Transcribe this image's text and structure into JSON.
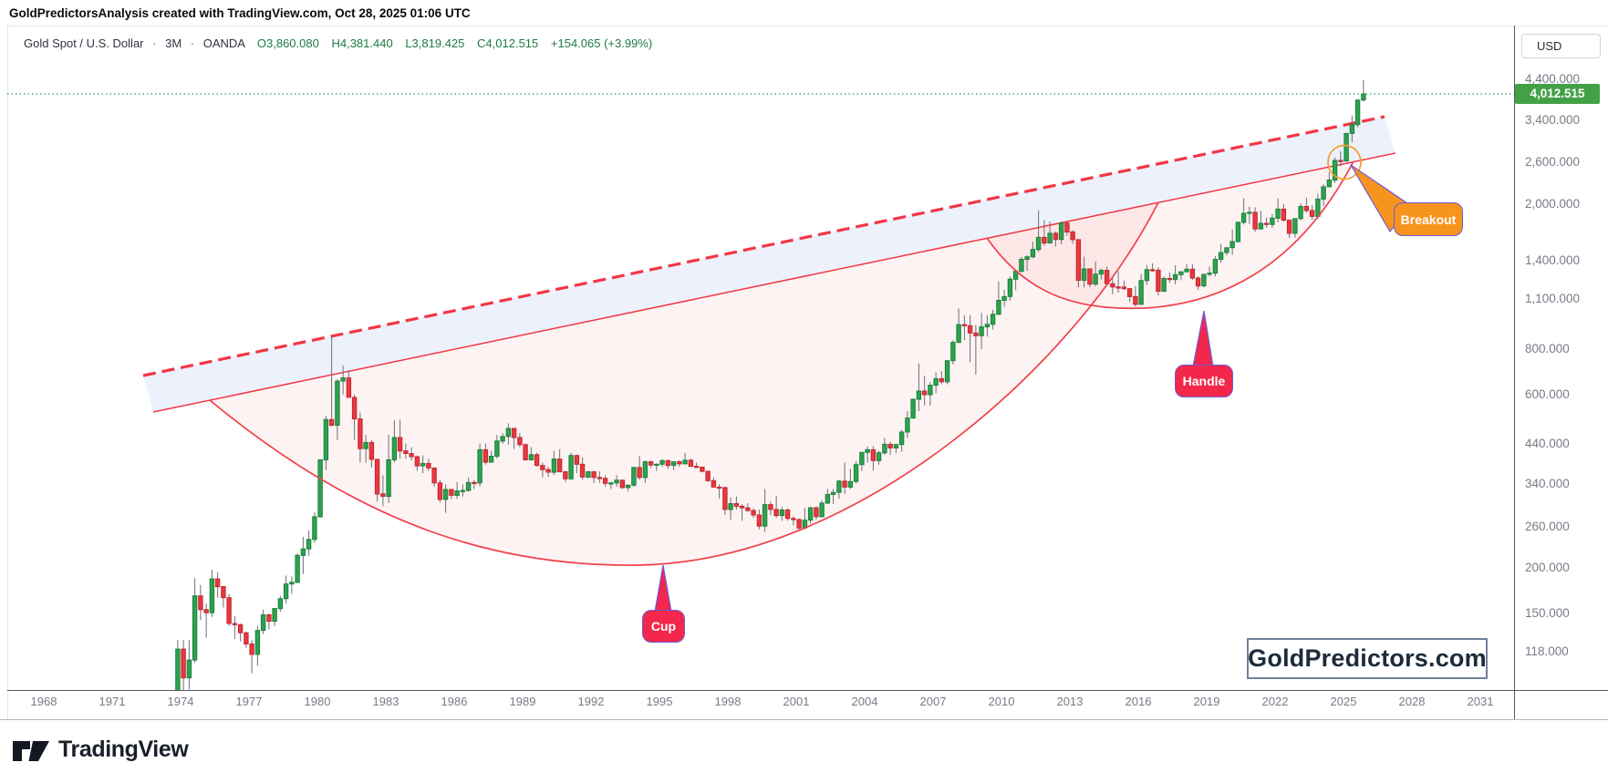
{
  "note": "GoldPredictorsAnalysis created with TradingView.com, Oct 28, 2025 01:06 UTC",
  "header": {
    "symbol": "Gold Spot / U.S. Dollar",
    "sep": "·",
    "interval": "3M",
    "exchange": "OANDA",
    "o_text": "O3,860.080",
    "h_text": "H4,381.440",
    "l_text": "L3,819.425",
    "c_text": "C4,012.515",
    "change_text": "+154.065 (+3.99%)"
  },
  "price_axis": {
    "currency": "USD",
    "last_price_label": "4,012.515",
    "last_price": 4012.515,
    "ticks": [
      {
        "label": "4,400.000",
        "value": 4400
      },
      {
        "label": "3,400.000",
        "value": 3400
      },
      {
        "label": "2,600.000",
        "value": 2600
      },
      {
        "label": "2,000.000",
        "value": 2000
      },
      {
        "label": "1,400.000",
        "value": 1400
      },
      {
        "label": "1,100.000",
        "value": 1100
      },
      {
        "label": "800.000",
        "value": 800
      },
      {
        "label": "600.000",
        "value": 600
      },
      {
        "label": "440.000",
        "value": 440
      },
      {
        "label": "340.000",
        "value": 340
      },
      {
        "label": "260.000",
        "value": 260
      },
      {
        "label": "200.000",
        "value": 200
      },
      {
        "label": "150.000",
        "value": 150
      },
      {
        "label": "118.000",
        "value": 118
      }
    ]
  },
  "time_axis": {
    "years": [
      1968,
      1971,
      1974,
      1977,
      1980,
      1983,
      1986,
      1989,
      1992,
      1995,
      1998,
      2001,
      2004,
      2007,
      2010,
      2013,
      2016,
      2019,
      2022,
      2025,
      2028,
      2031
    ]
  },
  "annotations": {
    "cup_label": "Cup",
    "handle_label": "Handle",
    "breakout_label": "Breakout"
  },
  "watermark": "GoldPredictors.com",
  "footer": {
    "brand": "TradingView"
  },
  "colors": {
    "candle_up": "#2fa14f",
    "candle_down": "#e9383f",
    "trendline_red": "#f23645",
    "channel_band": "#e9eefb",
    "pattern_fill": "#fdf2f3",
    "current_price_green": "#43a047",
    "badge_red": "#f2274b",
    "badge_orange": "#f7941e",
    "badge_border_violet": "#6f5adc",
    "ohlc_text_green": "#1e7b45"
  },
  "chart_data": {
    "type": "candlestick",
    "title": "Gold Spot / U.S. Dollar",
    "timeframe": "3M",
    "exchange": "OANDA",
    "y_scale": "log",
    "ylim": [
      94,
      6180
    ],
    "xlim_years": [
      1966.4,
      2032.5
    ],
    "x_tick_years": [
      1968,
      1971,
      1974,
      1977,
      1980,
      1983,
      1986,
      1989,
      1992,
      1995,
      1998,
      2001,
      2004,
      2007,
      2010,
      2013,
      2016,
      2019,
      2022,
      2025,
      2028,
      2031
    ],
    "y_ticks": [
      4400,
      3400,
      2600,
      2000,
      1400,
      1100,
      800,
      600,
      440,
      340,
      260,
      200,
      150,
      118
    ],
    "last_close": 4012.515,
    "candles_start": "1973-Q4",
    "candles_freq": "quarterly",
    "candles_ohlc": [
      [
        84,
        127,
        84,
        120
      ],
      [
        120,
        127,
        90,
        100
      ],
      [
        100,
        127,
        93,
        112
      ],
      [
        112,
        188,
        110,
        168
      ],
      [
        168,
        180,
        144,
        154
      ],
      [
        154,
        160,
        129,
        151
      ],
      [
        151,
        198,
        147,
        187
      ],
      [
        187,
        195,
        166,
        178
      ],
      [
        178,
        179,
        156,
        166
      ],
      [
        166,
        170,
        139,
        141
      ],
      [
        141,
        148,
        128,
        140
      ],
      [
        140,
        141,
        126,
        133
      ],
      [
        133,
        134,
        121,
        124
      ],
      [
        124,
        127,
        103,
        116
      ],
      [
        116,
        139,
        108,
        135
      ],
      [
        135,
        154,
        132,
        149
      ],
      [
        149,
        150,
        136,
        143
      ],
      [
        143,
        155,
        139,
        155
      ],
      [
        155,
        168,
        152,
        165
      ],
      [
        165,
        191,
        160,
        181
      ],
      [
        181,
        190,
        170,
        183
      ],
      [
        183,
        220,
        182,
        217
      ],
      [
        217,
        244,
        193,
        226
      ],
      [
        226,
        254,
        216,
        240
      ],
      [
        240,
        285,
        235,
        277
      ],
      [
        277,
        397,
        275,
        397
      ],
      [
        397,
        524,
        372,
        512
      ],
      [
        512,
        873,
        490,
        494
      ],
      [
        494,
        660,
        450,
        653
      ],
      [
        653,
        720,
        600,
        666
      ],
      [
        666,
        700,
        589,
        589
      ],
      [
        589,
        600,
        450,
        514
      ],
      [
        514,
        535,
        390,
        426
      ],
      [
        426,
        465,
        390,
        443
      ],
      [
        443,
        450,
        378,
        398
      ],
      [
        398,
        400,
        305,
        320
      ],
      [
        320,
        360,
        296,
        315
      ],
      [
        315,
        465,
        302,
        397
      ],
      [
        397,
        510,
        390,
        457
      ],
      [
        457,
        512,
        400,
        420
      ],
      [
        420,
        440,
        400,
        413
      ],
      [
        413,
        430,
        395,
        405
      ],
      [
        405,
        408,
        370,
        382
      ],
      [
        382,
        408,
        365,
        388
      ],
      [
        388,
        400,
        370,
        377
      ],
      [
        377,
        378,
        335,
        343
      ],
      [
        343,
        350,
        303,
        309
      ],
      [
        309,
        340,
        284,
        329
      ],
      [
        329,
        330,
        310,
        317
      ],
      [
        317,
        345,
        310,
        326
      ],
      [
        326,
        340,
        315,
        327
      ],
      [
        327,
        355,
        325,
        344
      ],
      [
        344,
        350,
        330,
        343
      ],
      [
        343,
        440,
        335,
        423
      ],
      [
        423,
        440,
        385,
        391
      ],
      [
        391,
        420,
        390,
        406
      ],
      [
        406,
        465,
        400,
        447
      ],
      [
        447,
        470,
        440,
        460
      ],
      [
        460,
        500,
        437,
        484
      ],
      [
        484,
        485,
        425,
        457
      ],
      [
        457,
        470,
        430,
        437
      ],
      [
        437,
        440,
        395,
        397
      ],
      [
        397,
        430,
        395,
        410
      ],
      [
        410,
        415,
        380,
        383
      ],
      [
        383,
        390,
        355,
        373
      ],
      [
        373,
        380,
        356,
        367
      ],
      [
        367,
        420,
        360,
        399
      ],
      [
        399,
        424,
        368,
        368
      ],
      [
        368,
        370,
        345,
        352
      ],
      [
        352,
        415,
        350,
        408
      ],
      [
        408,
        410,
        365,
        386
      ],
      [
        386,
        403,
        350,
        356
      ],
      [
        356,
        370,
        353,
        368
      ],
      [
        368,
        370,
        343,
        355
      ],
      [
        355,
        369,
        343,
        353
      ],
      [
        353,
        360,
        335,
        342
      ],
      [
        342,
        345,
        330,
        343
      ],
      [
        343,
        360,
        335,
        349
      ],
      [
        349,
        350,
        330,
        333
      ],
      [
        333,
        340,
        325,
        338
      ],
      [
        338,
        380,
        335,
        378
      ],
      [
        378,
        407,
        350,
        355
      ],
      [
        355,
        395,
        343,
        392
      ],
      [
        392,
        395,
        377,
        384
      ],
      [
        384,
        388,
        370,
        386
      ],
      [
        386,
        398,
        380,
        395
      ],
      [
        395,
        397,
        375,
        383
      ],
      [
        383,
        392,
        372,
        392
      ],
      [
        392,
        396,
        380,
        387
      ],
      [
        387,
        415,
        386,
        396
      ],
      [
        396,
        400,
        380,
        381
      ],
      [
        381,
        390,
        378,
        379
      ],
      [
        379,
        380,
        367,
        369
      ],
      [
        369,
        370,
        345,
        348
      ],
      [
        348,
        355,
        334,
        334
      ],
      [
        334,
        340,
        311,
        333
      ],
      [
        333,
        335,
        280,
        290
      ],
      [
        290,
        313,
        272,
        301
      ],
      [
        301,
        315,
        290,
        296
      ],
      [
        296,
        300,
        270,
        293
      ],
      [
        293,
        302,
        286,
        288
      ],
      [
        288,
        292,
        275,
        280
      ],
      [
        280,
        290,
        256,
        261
      ],
      [
        261,
        330,
        252,
        299
      ],
      [
        299,
        305,
        280,
        290
      ],
      [
        290,
        316,
        275,
        279
      ],
      [
        279,
        295,
        270,
        289
      ],
      [
        289,
        292,
        270,
        274
      ],
      [
        274,
        278,
        262,
        272
      ],
      [
        272,
        274,
        255,
        258
      ],
      [
        258,
        293,
        256,
        271
      ],
      [
        271,
        295,
        265,
        293
      ],
      [
        293,
        296,
        272,
        277
      ],
      [
        277,
        307,
        276,
        302
      ],
      [
        302,
        330,
        300,
        319
      ],
      [
        319,
        330,
        300,
        323
      ],
      [
        323,
        350,
        310,
        347
      ],
      [
        347,
        390,
        320,
        334
      ],
      [
        334,
        375,
        330,
        346
      ],
      [
        346,
        394,
        342,
        385
      ],
      [
        385,
        417,
        370,
        416
      ],
      [
        416,
        432,
        390,
        423
      ],
      [
        423,
        433,
        371,
        395
      ],
      [
        395,
        420,
        385,
        415
      ],
      [
        415,
        456,
        410,
        438
      ],
      [
        438,
        445,
        410,
        428
      ],
      [
        428,
        440,
        414,
        437
      ],
      [
        437,
        480,
        418,
        473
      ],
      [
        473,
        540,
        456,
        517
      ],
      [
        517,
        585,
        515,
        582
      ],
      [
        582,
        730,
        540,
        613
      ],
      [
        613,
        675,
        560,
        599
      ],
      [
        599,
        650,
        559,
        636
      ],
      [
        636,
        690,
        605,
        663
      ],
      [
        663,
        695,
        640,
        650
      ],
      [
        650,
        745,
        640,
        743
      ],
      [
        743,
        845,
        725,
        834
      ],
      [
        834,
        1033,
        830,
        933
      ],
      [
        933,
        990,
        845,
        926
      ],
      [
        926,
        990,
        736,
        885
      ],
      [
        885,
        930,
        680,
        870
      ],
      [
        870,
        1006,
        800,
        920
      ],
      [
        920,
        990,
        865,
        935
      ],
      [
        935,
        1025,
        905,
        996
      ],
      [
        996,
        1226,
        990,
        1088
      ],
      [
        1088,
        1163,
        1045,
        1114
      ],
      [
        1114,
        1265,
        1085,
        1243
      ],
      [
        1243,
        1315,
        1160,
        1307
      ],
      [
        1307,
        1431,
        1300,
        1410
      ],
      [
        1410,
        1447,
        1310,
        1432
      ],
      [
        1432,
        1577,
        1420,
        1500
      ],
      [
        1500,
        1920,
        1480,
        1620
      ],
      [
        1620,
        1805,
        1535,
        1563
      ],
      [
        1563,
        1790,
        1560,
        1662
      ],
      [
        1662,
        1680,
        1527,
        1598
      ],
      [
        1598,
        1790,
        1550,
        1772
      ],
      [
        1772,
        1798,
        1636,
        1676
      ],
      [
        1676,
        1697,
        1555,
        1597
      ],
      [
        1597,
        1600,
        1180,
        1235
      ],
      [
        1235,
        1434,
        1180,
        1327
      ],
      [
        1327,
        1330,
        1182,
        1205
      ],
      [
        1205,
        1392,
        1190,
        1284
      ],
      [
        1284,
        1330,
        1240,
        1315
      ],
      [
        1315,
        1346,
        1206,
        1208
      ],
      [
        1208,
        1255,
        1130,
        1184
      ],
      [
        1184,
        1307,
        1142,
        1183
      ],
      [
        1183,
        1232,
        1162,
        1171
      ],
      [
        1171,
        1175,
        1077,
        1114
      ],
      [
        1114,
        1191,
        1046,
        1061
      ],
      [
        1061,
        1285,
        1060,
        1233
      ],
      [
        1233,
        1360,
        1200,
        1321
      ],
      [
        1321,
        1375,
        1302,
        1316
      ],
      [
        1316,
        1340,
        1122,
        1152
      ],
      [
        1152,
        1264,
        1146,
        1249
      ],
      [
        1249,
        1296,
        1214,
        1241
      ],
      [
        1241,
        1357,
        1204,
        1280
      ],
      [
        1280,
        1306,
        1236,
        1303
      ],
      [
        1303,
        1366,
        1302,
        1325
      ],
      [
        1325,
        1365,
        1238,
        1253
      ],
      [
        1253,
        1266,
        1160,
        1192
      ],
      [
        1192,
        1285,
        1180,
        1282
      ],
      [
        1282,
        1346,
        1266,
        1292
      ],
      [
        1292,
        1439,
        1266,
        1409
      ],
      [
        1409,
        1557,
        1381,
        1472
      ],
      [
        1472,
        1520,
        1445,
        1517
      ],
      [
        1517,
        1703,
        1451,
        1577
      ],
      [
        1577,
        1789,
        1568,
        1781
      ],
      [
        1781,
        2075,
        1757,
        1886
      ],
      [
        1886,
        1965,
        1765,
        1898
      ],
      [
        1898,
        1959,
        1677,
        1708
      ],
      [
        1708,
        1917,
        1706,
        1770
      ],
      [
        1770,
        1834,
        1721,
        1757
      ],
      [
        1757,
        1877,
        1722,
        1829
      ],
      [
        1829,
        2070,
        1780,
        1937
      ],
      [
        1937,
        1998,
        1785,
        1807
      ],
      [
        1807,
        1808,
        1615,
        1661
      ],
      [
        1661,
        1824,
        1617,
        1824
      ],
      [
        1824,
        2010,
        1805,
        1969
      ],
      [
        1969,
        2081,
        1893,
        1919
      ],
      [
        1919,
        1987,
        1810,
        1849
      ],
      [
        1849,
        2135,
        1820,
        2063
      ],
      [
        2063,
        2265,
        1973,
        2230
      ],
      [
        2230,
        2450,
        2228,
        2327
      ],
      [
        2327,
        2685,
        2287,
        2635
      ],
      [
        2635,
        2790,
        2536,
        2625
      ],
      [
        2625,
        3128,
        2615,
        3124
      ],
      [
        3124,
        3500,
        2956,
        3303
      ],
      [
        3303,
        3871,
        3248,
        3859
      ],
      [
        3860,
        4381,
        3819,
        4012.5
      ]
    ],
    "annotations": [
      {
        "type": "trendline",
        "style": "dashed",
        "label": "channel top",
        "from": {
          "year": 1972.4,
          "price": 676
        },
        "to": {
          "year": 2026.8,
          "price": 3473
        }
      },
      {
        "type": "trendline",
        "style": "solid",
        "label": "channel bottom",
        "from": {
          "year": 1972.8,
          "price": 537
        },
        "to": {
          "year": 2027.3,
          "price": 2758
        }
      },
      {
        "type": "arc",
        "label": "Cup",
        "start": {
          "year": 1975.3,
          "price": 575
        },
        "bottom": {
          "year": 1994.1,
          "price": 204
        },
        "end": {
          "year": 2016.9,
          "price": 2021
        }
      },
      {
        "type": "arc",
        "label": "Handle",
        "start": {
          "year": 2009.4,
          "price": 1615
        },
        "bottom": {
          "year": 2016.3,
          "price": 1034
        },
        "end": {
          "year": 2025.4,
          "price": 2617
        }
      },
      {
        "type": "circle",
        "label": "Breakout",
        "at": {
          "year": 2025.0,
          "price": 2602
        }
      },
      {
        "type": "hline",
        "style": "dotted",
        "label": "current price",
        "price": 4012.515
      }
    ]
  }
}
